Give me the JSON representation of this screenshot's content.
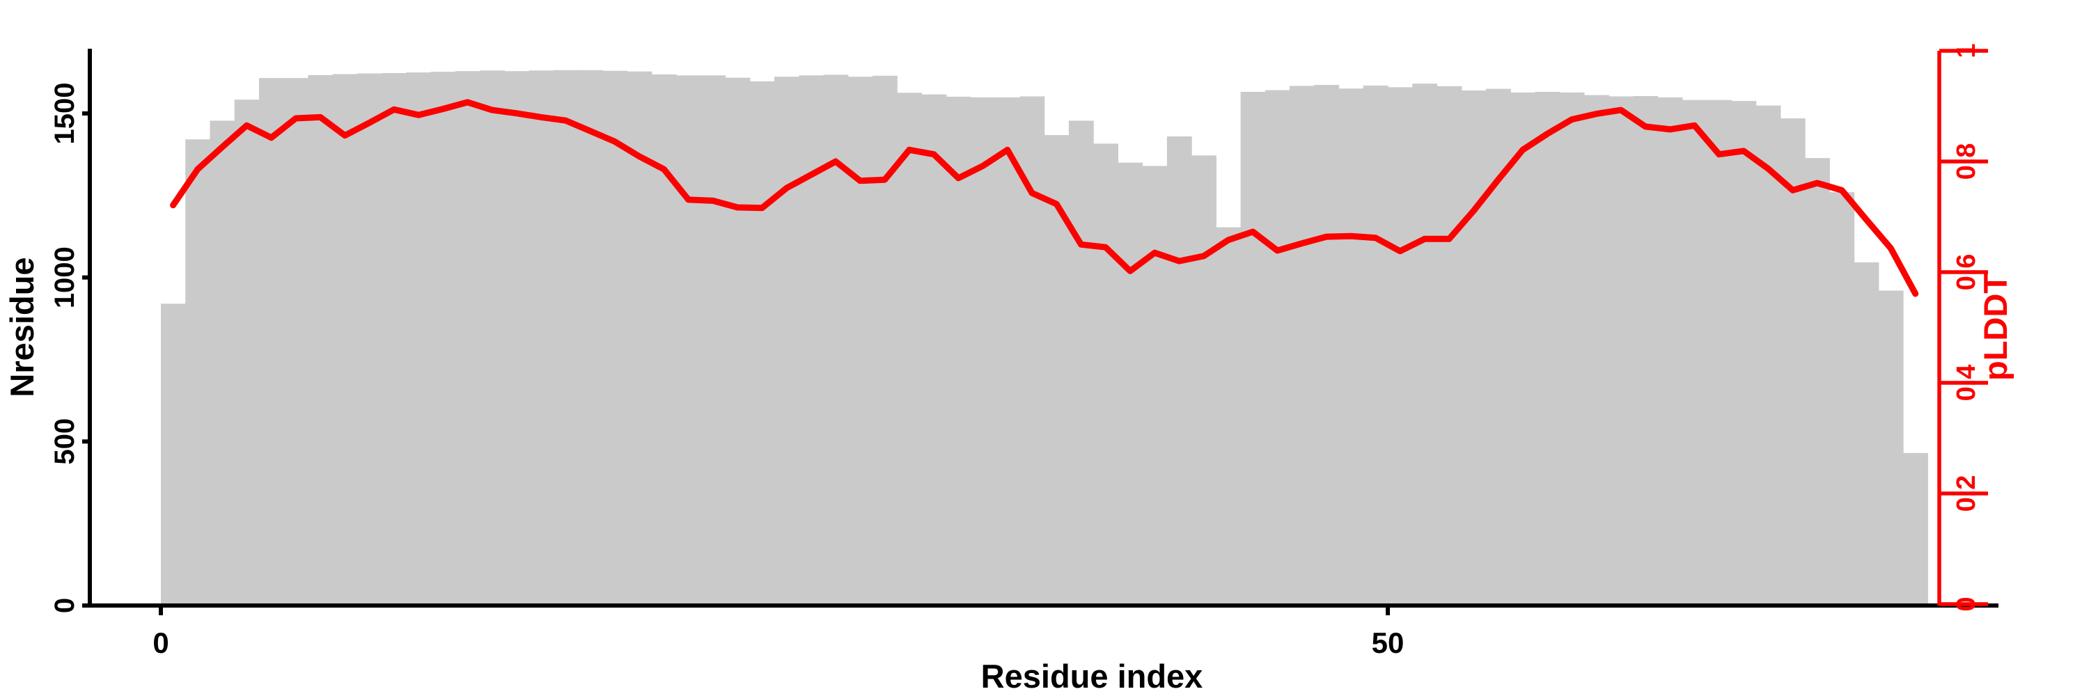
{
  "chart_data": {
    "type": "bar+line",
    "title": "",
    "xlabel": "Residue index",
    "ylabel_left": "Nresidue",
    "ylabel_right": "pLDDT",
    "x_tick_labels": [
      "0",
      "50"
    ],
    "x_tick_values": [
      0,
      50
    ],
    "left_tick_labels": [
      "0",
      "500",
      "1000",
      "1500"
    ],
    "left_tick_values": [
      0,
      500,
      1000,
      1500
    ],
    "left_ylim": [
      0,
      1697
    ],
    "right_tick_labels": [
      "0",
      "0.2",
      "0.4",
      "0.6",
      "0.8",
      "1"
    ],
    "right_tick_values": [
      0,
      0.2,
      0.4,
      0.6,
      0.8,
      1
    ],
    "right_ylim": [
      0,
      1
    ],
    "grid": false,
    "legend": "none",
    "bar_series": {
      "name": "Nresidue",
      "x_start": 0,
      "bar_width": 1,
      "values": [
        920,
        1421,
        1478,
        1542,
        1608,
        1608,
        1617,
        1620,
        1622,
        1623,
        1625,
        1627,
        1629,
        1631,
        1629,
        1631,
        1632,
        1632,
        1630,
        1628,
        1619,
        1616,
        1616,
        1609,
        1598,
        1612,
        1616,
        1618,
        1612,
        1615,
        1563,
        1558,
        1551,
        1549,
        1549,
        1552,
        1434,
        1478,
        1408,
        1350,
        1340,
        1430,
        1372,
        1153,
        1566,
        1571,
        1584,
        1587,
        1576,
        1585,
        1580,
        1591,
        1583,
        1570,
        1575,
        1564,
        1566,
        1564,
        1556,
        1552,
        1553,
        1549,
        1541,
        1541,
        1538,
        1524,
        1485,
        1364,
        1260,
        1046,
        960,
        465
      ]
    },
    "line_series": {
      "name": "pLDDT",
      "x_offset": 0.5,
      "values": [
        0.721,
        0.786,
        0.826,
        0.865,
        0.843,
        0.878,
        0.88,
        0.847,
        0.87,
        0.894,
        0.884,
        0.895,
        0.907,
        0.893,
        0.887,
        0.88,
        0.874,
        0.855,
        0.836,
        0.809,
        0.786,
        0.731,
        0.729,
        0.717,
        0.716,
        0.752,
        0.776,
        0.8,
        0.765,
        0.767,
        0.821,
        0.813,
        0.77,
        0.792,
        0.821,
        0.743,
        0.723,
        0.65,
        0.645,
        0.602,
        0.635,
        0.62,
        0.629,
        0.658,
        0.673,
        0.639,
        0.652,
        0.664,
        0.665,
        0.662,
        0.638,
        0.66,
        0.66,
        0.711,
        0.767,
        0.821,
        0.85,
        0.876,
        0.886,
        0.893,
        0.863,
        0.858,
        0.865,
        0.813,
        0.819,
        0.787,
        0.748,
        0.761,
        0.748,
        0.695,
        0.643,
        0.561
      ]
    },
    "colors": {
      "bar": "#cacaca",
      "line": "#fb0200",
      "right_axis": "#fb0200",
      "axis": "#000000",
      "background": "#ffffff"
    }
  }
}
